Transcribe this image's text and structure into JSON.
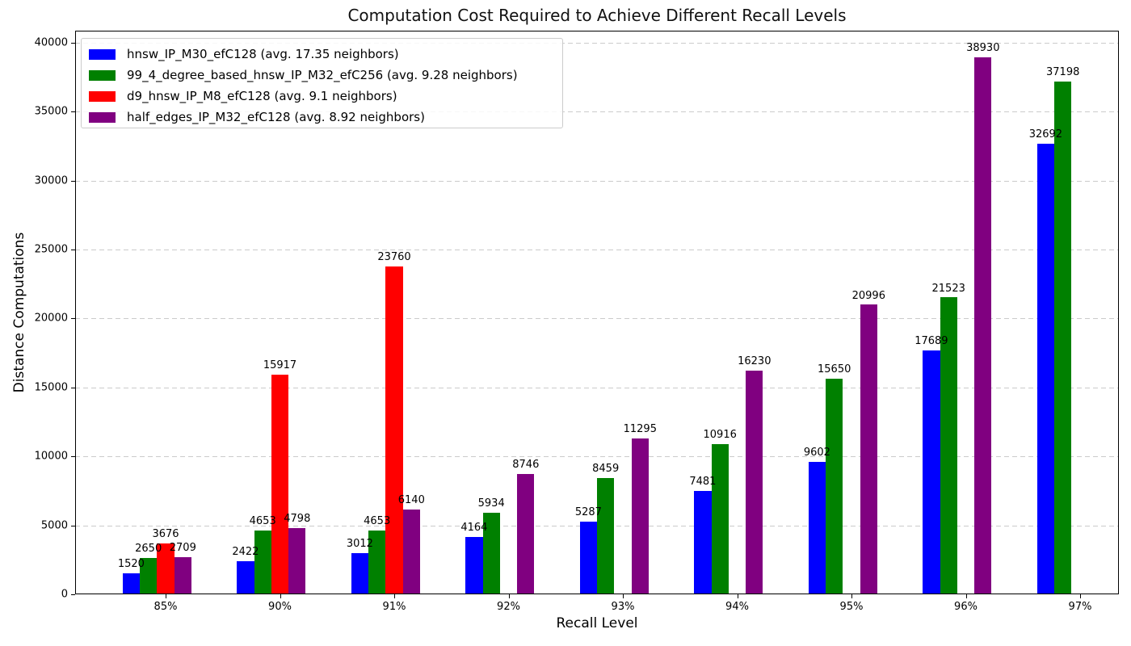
{
  "chart_data": {
    "type": "bar",
    "title": "Computation Cost Required to Achieve Different Recall Levels",
    "xlabel": "Recall Level",
    "ylabel": "Distance Computations",
    "categories": [
      "85%",
      "90%",
      "91%",
      "92%",
      "93%",
      "94%",
      "95%",
      "96%",
      "97%"
    ],
    "series": [
      {
        "name": "hnsw_IP_M30_efC128 (avg. 17.35 neighbors)",
        "color": "#0000ff",
        "values": [
          1520,
          2422,
          3012,
          4164,
          5287,
          7481,
          9602,
          17689,
          32692
        ]
      },
      {
        "name": "99_4_degree_based_hnsw_IP_M32_efC256 (avg. 9.28 neighbors)",
        "color": "#008000",
        "values": [
          2650,
          4653,
          4653,
          5934,
          8459,
          10916,
          15650,
          21523,
          37198
        ]
      },
      {
        "name": "d9_hnsw_IP_M8_efC128 (avg. 9.1 neighbors)",
        "color": "#ff0000",
        "values": [
          3676,
          15917,
          23760,
          null,
          null,
          null,
          null,
          null,
          null
        ]
      },
      {
        "name": "half_edges_IP_M32_efC128 (avg. 8.92 neighbors)",
        "color": "#800080",
        "values": [
          2709,
          4798,
          6140,
          8746,
          11295,
          16230,
          20996,
          38930,
          null
        ]
      }
    ],
    "ylim": [
      0,
      40878
    ],
    "y_ticks": [
      0,
      5000,
      10000,
      15000,
      20000,
      25000,
      30000,
      35000,
      40000
    ],
    "grid": "horizontal-dashed",
    "legend_position": "upper-left",
    "bar_value_labels": true
  }
}
